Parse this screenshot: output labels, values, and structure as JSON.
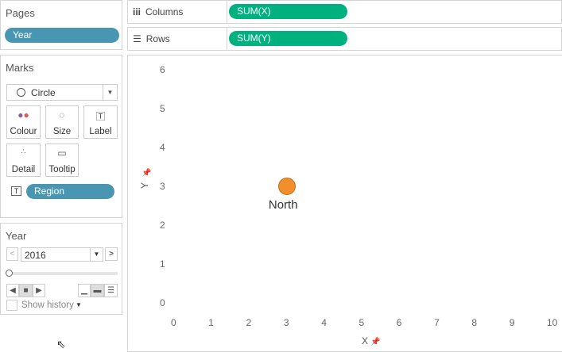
{
  "pages": {
    "title": "Pages",
    "pill": "Year"
  },
  "marks": {
    "title": "Marks",
    "type": "Circle",
    "buttons": [
      {
        "label": "Colour",
        "icon": "colour-icon"
      },
      {
        "label": "Size",
        "icon": "size-icon"
      },
      {
        "label": "Label",
        "icon": "label-icon"
      },
      {
        "label": "Detail",
        "icon": "detail-icon"
      },
      {
        "label": "Tooltip",
        "icon": "tooltip-icon"
      }
    ],
    "field_pill": "Region"
  },
  "year_control": {
    "title": "Year",
    "value": "2016",
    "show_history": "Show history"
  },
  "shelves": {
    "columns_label": "Columns",
    "columns_pill": "SUM(X)",
    "rows_label": "Rows",
    "rows_pill": "SUM(Y)"
  },
  "chart_data": {
    "type": "scatter",
    "xlabel": "X",
    "ylabel": "Y",
    "xlim": [
      0,
      10
    ],
    "ylim": [
      0,
      6
    ],
    "x_ticks": [
      "0",
      "1",
      "2",
      "3",
      "4",
      "5",
      "6",
      "7",
      "8",
      "9",
      "10"
    ],
    "y_ticks": [
      "0",
      "1",
      "2",
      "3",
      "4",
      "5",
      "6"
    ],
    "points": [
      {
        "x": 3,
        "y": 3,
        "label": "North",
        "color": "#f28e2b"
      }
    ],
    "grid": false
  }
}
